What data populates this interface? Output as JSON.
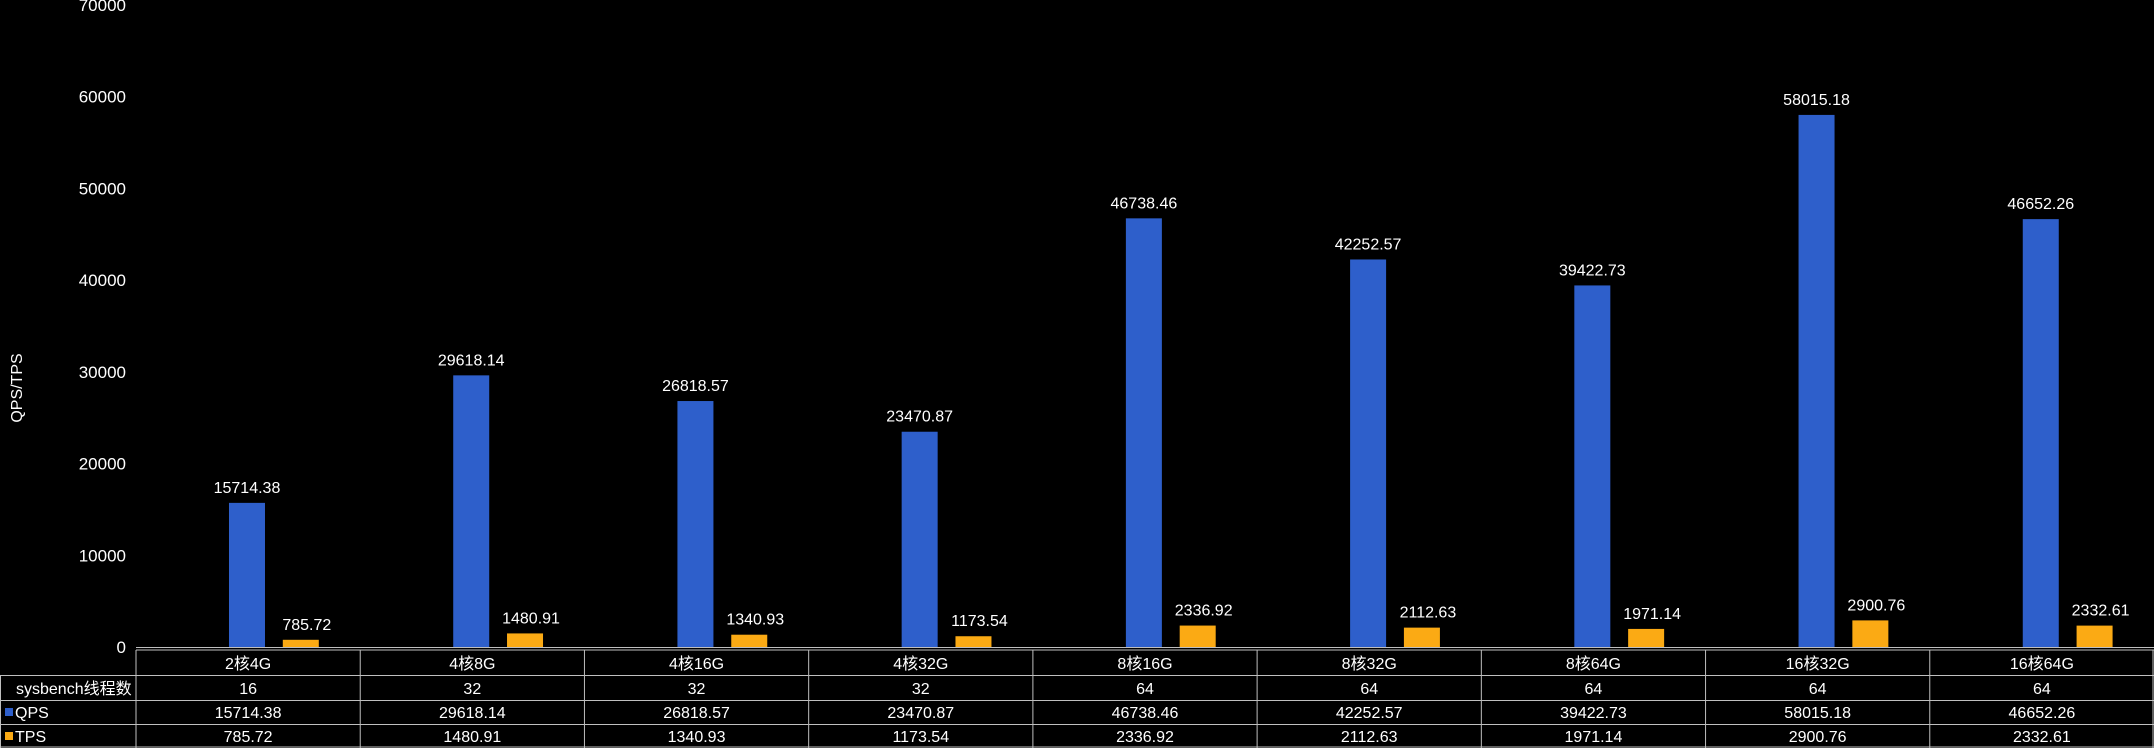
{
  "chart_data": {
    "type": "bar",
    "ylabel": "QPS/TPS",
    "ylim": [
      0,
      70000
    ],
    "yticks": [
      0,
      10000,
      20000,
      30000,
      40000,
      50000,
      60000,
      70000
    ],
    "categories": [
      "2核4G",
      "4核8G",
      "4核16G",
      "4核32G",
      "8核16G",
      "8核32G",
      "8核64G",
      "16核32G",
      "16核64G"
    ],
    "series": [
      {
        "name": "QPS",
        "color": "#2E5FCB",
        "values": [
          15714.38,
          29618.14,
          26818.57,
          23470.87,
          46738.46,
          42252.57,
          39422.73,
          58015.18,
          46652.26
        ],
        "labels": [
          "15714.38",
          "29618.14",
          "26818.57",
          "23470.87",
          "46738.46",
          "42252.57",
          "39422.73",
          "58015.18",
          "46652.26"
        ]
      },
      {
        "name": "TPS",
        "color": "#FBAA14",
        "values": [
          785.72,
          1480.91,
          1340.93,
          1173.54,
          2336.92,
          2112.63,
          1971.14,
          2900.76,
          2332.61
        ],
        "labels": [
          "785.72",
          "1480.91",
          "1340.93",
          "1173.54",
          "2336.92",
          "2112.63",
          "1971.14",
          "2900.76",
          "2332.61"
        ]
      }
    ],
    "grid": false,
    "legend": "table-rows",
    "table": {
      "rows": [
        {
          "label": "sysbench线程数",
          "values": [
            "16",
            "32",
            "32",
            "32",
            "64",
            "64",
            "64",
            "64",
            "64"
          ]
        },
        {
          "label": "QPS",
          "series": 0
        },
        {
          "label": "TPS",
          "series": 1
        }
      ]
    }
  }
}
